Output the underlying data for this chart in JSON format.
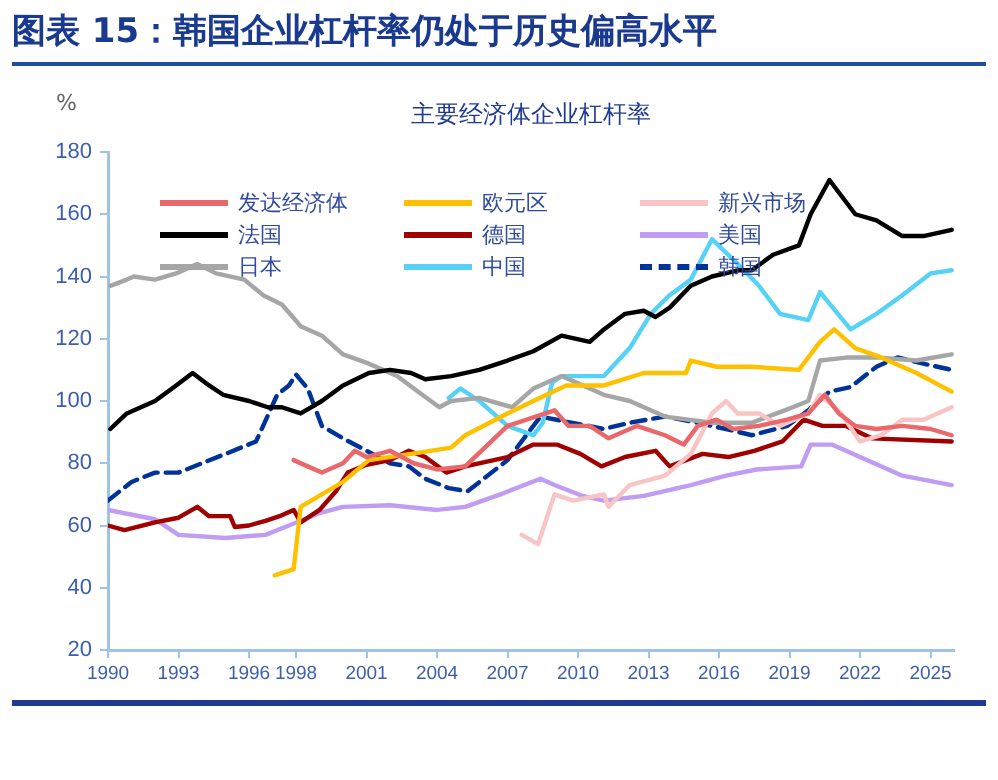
{
  "chart_data": {
    "type": "line",
    "title": "图表 15：韩国企业杠杆率仍处于历史偏高水平",
    "subtitle": "主要经济体企业杠杆率",
    "ylabel": "%",
    "xlim": [
      1990,
      2026
    ],
    "ylim": [
      20,
      180
    ],
    "xticks": [
      1990,
      1993,
      1996,
      1998,
      2001,
      2004,
      2007,
      2010,
      2013,
      2016,
      2019,
      2022,
      2025
    ],
    "yticks": [
      20,
      40,
      60,
      80,
      100,
      120,
      140,
      160,
      180
    ],
    "grid": false,
    "legend": "top",
    "marker": "none",
    "series": [
      {
        "name": "发达经济体",
        "color": "#e8686b",
        "x": [
          1997.9,
          1998.5,
          1999.1,
          2000,
          2000.5,
          2001,
          2002,
          2003,
          2004,
          2005.2,
          2007,
          2009,
          2009.6,
          2010.5,
          2011.3,
          2012.5,
          2013.7,
          2014.5,
          2015.1,
          2015.9,
          2016.6,
          2017.7,
          2018.9,
          2019.8,
          2020.5,
          2021.1,
          2021.8,
          2022.7,
          2023.8,
          2025,
          2025.9
        ],
        "values": [
          81,
          79,
          77,
          80,
          84,
          82,
          84,
          80,
          78,
          79,
          92,
          97,
          92,
          92,
          88,
          92,
          89,
          86,
          92,
          94,
          91,
          92,
          94,
          96,
          102,
          96,
          92,
          91,
          92,
          91,
          89
        ]
      },
      {
        "name": "欧元区",
        "color": "#ffc000",
        "x": [
          1997.1,
          1997.9,
          1998.2,
          1999.1,
          2000,
          2001.1,
          2002.9,
          2004.6,
          2005.2,
          2007,
          2008.1,
          2009.5,
          2011.1,
          2012.8,
          2014.6,
          2014.8,
          2015.9,
          2017.4,
          2019.4,
          2020.3,
          2020.9,
          2021.8,
          2022.9,
          2024.4,
          2025.9
        ],
        "values": [
          44,
          46,
          66,
          70,
          74,
          81,
          83,
          85,
          89,
          96,
          100,
          105,
          105,
          109,
          109,
          113,
          111,
          111,
          110,
          119,
          123,
          117,
          114,
          109,
          103
        ]
      },
      {
        "name": "新兴市场",
        "color": "#f8c4c4",
        "x": [
          2007.6,
          2008.3,
          2009,
          2009.8,
          2011.1,
          2011.3,
          2012.2,
          2013.7,
          2014.8,
          2015.7,
          2016.3,
          2016.8,
          2017.7,
          2018.6,
          2019.8,
          2020.3,
          2021.2,
          2022,
          2022.9,
          2023.8,
          2024.7,
          2025.9
        ],
        "values": [
          57,
          54,
          70,
          68,
          70,
          66,
          73,
          76,
          83,
          96,
          100,
          96,
          96,
          92,
          96,
          102,
          96,
          87,
          89,
          94,
          94,
          98
        ]
      },
      {
        "name": "法国",
        "color": "#000000",
        "x": [
          1990.1,
          1990.8,
          1992,
          1992.9,
          1993.6,
          1994.3,
          1994.9,
          1996,
          1996.8,
          1997.4,
          1998.2,
          1999.1,
          2000,
          2001.1,
          2002,
          2002.9,
          2003.5,
          2004.6,
          2005.8,
          2007,
          2008.1,
          2009.3,
          2010.5,
          2011.1,
          2012,
          2012.8,
          2013.3,
          2013.9,
          2014.8,
          2015.7,
          2016.8,
          2017.4,
          2018.3,
          2019.4,
          2019.9,
          2020.7,
          2021.1,
          2021.8,
          2022.7,
          2023.8,
          2024.7,
          2025.9
        ],
        "values": [
          91,
          96,
          100,
          105,
          109,
          105,
          102,
          100,
          98,
          98,
          96,
          100,
          105,
          109,
          110,
          109,
          107,
          108,
          110,
          113,
          116,
          121,
          119,
          123,
          128,
          129,
          127,
          130,
          137,
          140,
          142,
          142,
          147,
          150,
          160,
          171,
          167,
          160,
          158,
          153,
          153,
          155
        ]
      },
      {
        "name": "德国",
        "color": "#a00000",
        "x": [
          1990,
          1990.7,
          1992,
          1993,
          1993.8,
          1994.3,
          1995.2,
          1995.4,
          1996,
          1996.7,
          1997.3,
          1997.9,
          1998.2,
          1999,
          1999.7,
          2000.2,
          2001,
          2002,
          2002.8,
          2003.5,
          2004.4,
          2005.2,
          2007,
          2008.1,
          2009.1,
          2010.1,
          2011,
          2012,
          2013.3,
          2013.9,
          2015.3,
          2016.4,
          2017.5,
          2018.7,
          2019.6,
          2020.4,
          2021.4,
          2022.5,
          2025.9
        ],
        "values": [
          60,
          58.5,
          61,
          62.5,
          66,
          63,
          63,
          59.5,
          60,
          61.5,
          63,
          65,
          61,
          65,
          71,
          77,
          79.5,
          81,
          84,
          82,
          77,
          79,
          82,
          86,
          86,
          83,
          79,
          82,
          84,
          79,
          83,
          82,
          84,
          87,
          94,
          92,
          92,
          88,
          87
        ]
      },
      {
        "name": "美国",
        "color": "#c09cf2",
        "x": [
          1990,
          1992,
          1993,
          1995,
          1996.7,
          1997.7,
          1999,
          2000,
          2002,
          2004,
          2005.2,
          2006.7,
          2008.4,
          2009,
          2010.2,
          2011.1,
          2012.8,
          2014.8,
          2016.3,
          2017.6,
          2019.5,
          2019.9,
          2020.8,
          2022,
          2023.8,
          2025.9
        ],
        "values": [
          65,
          62,
          57,
          56,
          57,
          60,
          64,
          66,
          66.5,
          65,
          66,
          70,
          75,
          73,
          69.5,
          68,
          69.5,
          73,
          76,
          78,
          79,
          86,
          86,
          82,
          76,
          73
        ]
      },
      {
        "name": "日本",
        "color": "#a6a6a6",
        "x": [
          1990.1,
          1990.8,
          1991.1,
          1992,
          1992.9,
          1993.8,
          1994.6,
          1995.8,
          1996.6,
          1997.4,
          1998.2,
          1999.1,
          2000,
          2001.1,
          2002.3,
          2003.2,
          2004.1,
          2004.6,
          2005.8,
          2007.2,
          2008.1,
          2009.3,
          2011.1,
          2012.2,
          2013.7,
          2015.7,
          2017.4,
          2018.8,
          2019.8,
          2020.3,
          2021.5,
          2022.7,
          2024.4,
          2025.9
        ],
        "values": [
          137,
          139,
          140,
          139,
          141,
          144,
          141,
          139,
          134,
          131,
          124,
          121,
          115,
          112,
          108,
          103,
          98,
          100,
          101,
          98,
          104,
          108,
          102,
          100,
          95,
          93,
          93,
          97,
          100,
          113,
          114,
          114,
          113,
          115
        ]
      },
      {
        "name": "中国",
        "color": "#55d2f5",
        "x": [
          2004.5,
          2005,
          2005.8,
          2007,
          2008.1,
          2008.5,
          2008.9,
          2009.3,
          2011.1,
          2012.2,
          2013.1,
          2013.9,
          2014.8,
          2015.7,
          2016.8,
          2017.7,
          2018.6,
          2019.8,
          2020.3,
          2021.6,
          2022.7,
          2023.8,
          2025,
          2025.9
        ],
        "values": [
          101,
          104,
          100,
          92,
          89,
          93,
          106,
          108,
          108,
          117,
          128,
          134,
          139,
          152,
          144,
          137,
          128,
          126,
          135,
          123,
          128,
          134,
          141,
          142
        ]
      },
      {
        "name": "韩国",
        "color": "#003399",
        "line_style": "dashed",
        "x": [
          1990,
          1991,
          1992,
          1993,
          1994,
          1995,
          1996.3,
          1997.2,
          1997.7,
          1998,
          1998.5,
          1999.1,
          2000,
          2001,
          2002,
          2002.8,
          2003.5,
          2004.5,
          2005.3,
          2007,
          2008.4,
          2011.1,
          2012.2,
          2013.7,
          2015.1,
          2016.3,
          2017.4,
          2018.9,
          2019.8,
          2020.7,
          2021.6,
          2022.7,
          2023.6,
          2024.7,
          2025.9
        ],
        "values": [
          68,
          74,
          77,
          77,
          80,
          83,
          87,
          102,
          105,
          108.5,
          104,
          92,
          88,
          84,
          80,
          79,
          75,
          72,
          71,
          81,
          95,
          91,
          93,
          95,
          93,
          91,
          89,
          92,
          97,
          103,
          104.5,
          111,
          114,
          112,
          110
        ]
      }
    ]
  }
}
